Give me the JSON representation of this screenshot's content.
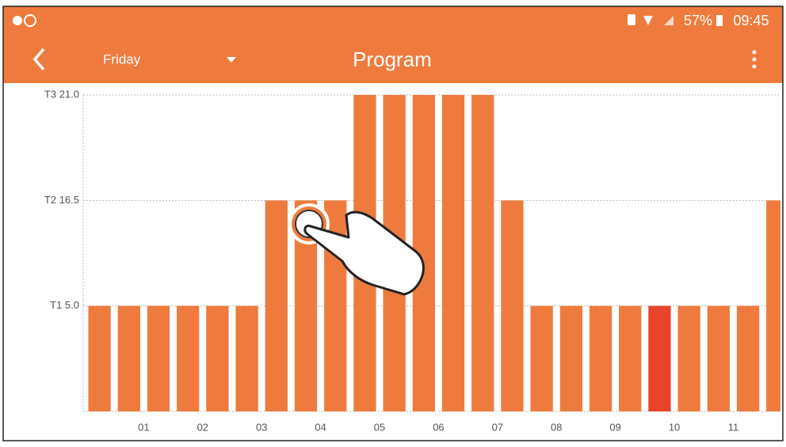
{
  "status_bar": {
    "battery": "57%",
    "time": "09:45"
  },
  "app_bar": {
    "day": "Friday",
    "title": "Program"
  },
  "chart_data": {
    "type": "bar",
    "x": [
      0.25,
      0.75,
      1.25,
      1.75,
      2.25,
      2.75,
      3.25,
      3.75,
      4.25,
      4.75,
      5.25,
      5.75,
      6.25,
      6.75,
      7.25,
      7.75,
      8.25,
      8.75,
      9.25,
      9.75,
      10.25,
      10.75,
      11.25,
      11.75
    ],
    "values": [
      5.0,
      5.0,
      5.0,
      5.0,
      5.0,
      5.0,
      16.5,
      16.5,
      16.5,
      21.0,
      21.0,
      21.0,
      21.0,
      21.0,
      16.5,
      5.0,
      5.0,
      5.0,
      5.0,
      5.0,
      5.0,
      5.0,
      5.0,
      16.5
    ],
    "colors": [
      "#ee7b3d",
      "#ee7b3d",
      "#ee7b3d",
      "#ee7b3d",
      "#ee7b3d",
      "#ee7b3d",
      "#ee7b3d",
      "#ee7b3d",
      "#ee7b3d",
      "#ee7b3d",
      "#ee7b3d",
      "#ee7b3d",
      "#ee7b3d",
      "#ee7b3d",
      "#ee7b3d",
      "#ee7b3d",
      "#ee7b3d",
      "#ee7b3d",
      "#ee7b3d",
      "#e9442b",
      "#ee7b3d",
      "#ee7b3d",
      "#ee7b3d",
      "#ee7b3d"
    ],
    "xlim": [
      0,
      11.8
    ],
    "xticks": [
      {
        "value": 1,
        "label": "01"
      },
      {
        "value": 2,
        "label": "02"
      },
      {
        "value": 3,
        "label": "03"
      },
      {
        "value": 4,
        "label": "04"
      },
      {
        "value": 5,
        "label": "05"
      },
      {
        "value": 6,
        "label": "06"
      },
      {
        "value": 7,
        "label": "07"
      },
      {
        "value": 8,
        "label": "08"
      },
      {
        "value": 9,
        "label": "09"
      },
      {
        "value": 10,
        "label": "10"
      },
      {
        "value": 11,
        "label": "11"
      }
    ],
    "ylim": [
      0,
      21.0
    ],
    "yticks": [
      {
        "value": 5.0,
        "label": "T1 5.0"
      },
      {
        "value": 16.5,
        "label": "T2 16.5"
      },
      {
        "value": 21.0,
        "label": "T3 21.0"
      }
    ],
    "grid": true
  }
}
